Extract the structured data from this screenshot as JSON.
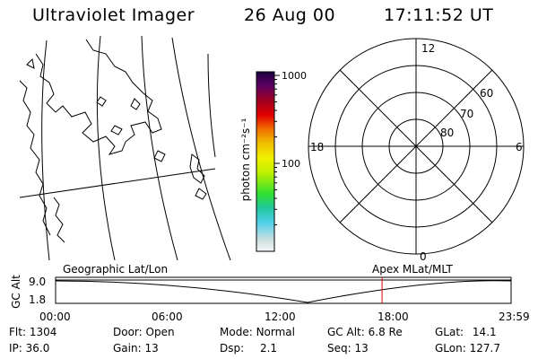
{
  "header": {
    "instrument": "Ultraviolet Imager",
    "date": "26 Aug 00",
    "time": "17:11:52 UT"
  },
  "colorbar": {
    "unit_label": "photon cm⁻²s⁻¹",
    "ticks": [
      {
        "label": "1000",
        "value": 1000
      },
      {
        "label": "100",
        "value": 100
      }
    ],
    "range": [
      10,
      1100
    ],
    "colors": [
      "#e8f0f0",
      "#c8d8d8",
      "#60d0e0",
      "#30e030",
      "#a0f000",
      "#f0f000",
      "#f0b000",
      "#f06000",
      "#e00000",
      "#a00020",
      "#600060",
      "#200040"
    ]
  },
  "polar_plot": {
    "clock_labels": [
      "12",
      "18",
      "6",
      "0"
    ],
    "lat_labels": [
      "60",
      "70",
      "80"
    ]
  },
  "altitude_plot": {
    "left_title": "Geographic Lat/Lon",
    "right_title": "Apex MLat/MLT",
    "ylabel": "GC Alt",
    "y_ticks": [
      "9.0",
      "1.8"
    ],
    "x_ticks": [
      "00:00",
      "06:00",
      "12:00",
      "18:00",
      "23:59"
    ],
    "current_time_marker_hours": 17.2
  },
  "info": {
    "flt_label": "Flt:",
    "flt_value": "1304",
    "ip_label": "IP:",
    "ip_value": "36.0",
    "door_label": "Door:",
    "door_value": "Open",
    "gain_label": "Gain:",
    "gain_value": "13",
    "mode_label": "Mode:",
    "mode_value": "Normal",
    "dsp_label": "Dsp:",
    "dsp_value": "2.1",
    "gcalt_label": "GC Alt:",
    "gcalt_value": "6.8 Re",
    "seq_label": "Seq:",
    "seq_value": "13",
    "glat_label": "GLat:",
    "glat_value": "14.1",
    "glon_label": "GLon:",
    "glon_value": "127.7"
  }
}
